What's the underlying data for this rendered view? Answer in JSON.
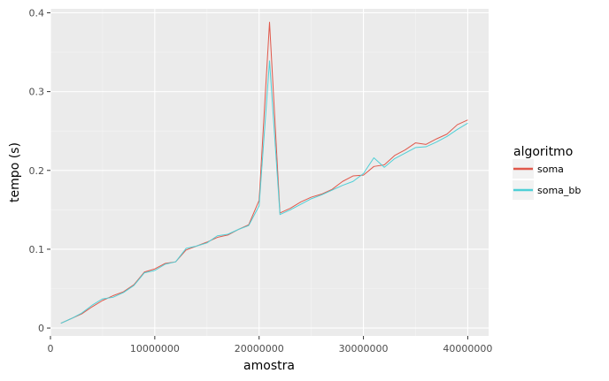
{
  "chart_data": {
    "type": "line",
    "title": "",
    "xlabel": "amostra",
    "ylabel": "tempo (s)",
    "xlim": [
      0,
      42000000
    ],
    "ylim": [
      -0.01,
      0.405
    ],
    "x_ticks": [
      0,
      10000000,
      20000000,
      30000000,
      40000000
    ],
    "x_tick_labels": [
      "0",
      "10000000",
      "20000000",
      "30000000",
      "40000000"
    ],
    "y_ticks": [
      0,
      0.1,
      0.2,
      0.3,
      0.4
    ],
    "y_tick_labels": [
      "0",
      "0.1",
      "0.2",
      "0.3",
      "0.4"
    ],
    "grid": true,
    "legend": {
      "title": "algoritmo",
      "position": "right"
    },
    "x": [
      1000000,
      2000000,
      3000000,
      4000000,
      5000000,
      6000000,
      7000000,
      8000000,
      9000000,
      10000000,
      11000000,
      12000000,
      13000000,
      14000000,
      15000000,
      16000000,
      17000000,
      18000000,
      19000000,
      20000000,
      21000000,
      22000000,
      23000000,
      24000000,
      25000000,
      26000000,
      27000000,
      28000000,
      29000000,
      30000000,
      31000000,
      32000000,
      33000000,
      34000000,
      35000000,
      36000000,
      37000000,
      38000000,
      39000000,
      40000000
    ],
    "series": [
      {
        "name": "soma",
        "color": "#e0584b",
        "values": [
          0.006,
          0.012,
          0.018,
          0.027,
          0.035,
          0.041,
          0.046,
          0.055,
          0.071,
          0.075,
          0.082,
          0.084,
          0.099,
          0.104,
          0.109,
          0.115,
          0.118,
          0.125,
          0.131,
          0.162,
          0.388,
          0.146,
          0.152,
          0.16,
          0.166,
          0.17,
          0.176,
          0.186,
          0.193,
          0.194,
          0.205,
          0.207,
          0.219,
          0.226,
          0.235,
          0.233,
          0.24,
          0.246,
          0.258,
          0.264
        ]
      },
      {
        "name": "soma_bb",
        "color": "#4fcfd6",
        "values": [
          0.006,
          0.012,
          0.019,
          0.029,
          0.037,
          0.039,
          0.045,
          0.054,
          0.07,
          0.073,
          0.081,
          0.084,
          0.101,
          0.104,
          0.108,
          0.117,
          0.119,
          0.125,
          0.13,
          0.155,
          0.339,
          0.144,
          0.15,
          0.157,
          0.164,
          0.169,
          0.175,
          0.181,
          0.186,
          0.196,
          0.216,
          0.204,
          0.215,
          0.222,
          0.229,
          0.23,
          0.236,
          0.243,
          0.252,
          0.26
        ]
      }
    ]
  }
}
